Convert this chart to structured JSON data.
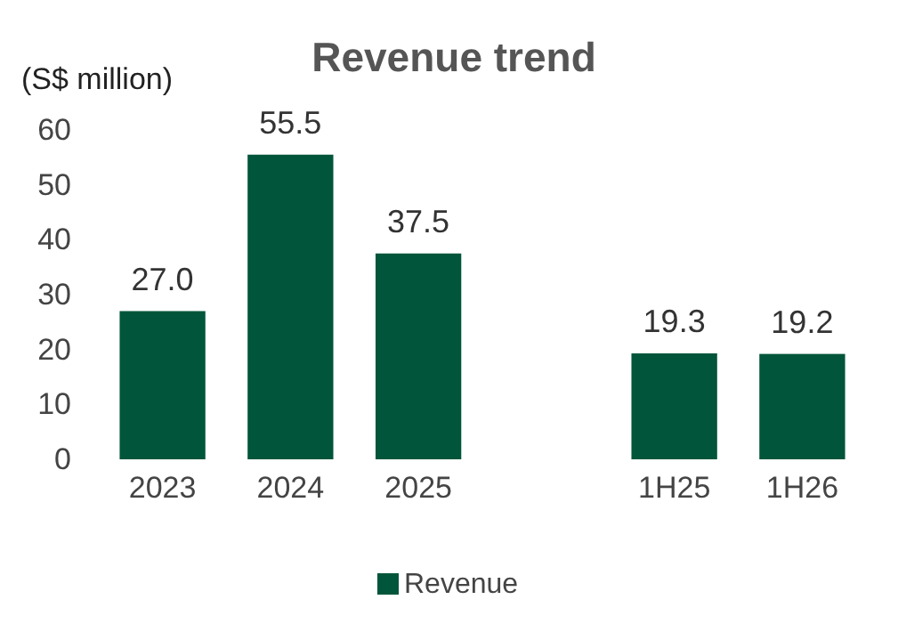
{
  "chart_data": {
    "type": "bar",
    "title": "Revenue trend",
    "ylabel": "(S$ million)",
    "categories": [
      "2023",
      "2024",
      "2025",
      null,
      "1H25",
      "1H26"
    ],
    "series": [
      {
        "name": "Revenue",
        "color": "#00553a",
        "values": [
          27.0,
          55.5,
          37.5,
          null,
          19.3,
          19.2
        ],
        "value_labels": [
          "27.0",
          "55.5",
          "37.5",
          null,
          "19.3",
          "19.2"
        ]
      }
    ],
    "ylim": [
      0,
      60
    ],
    "yticks": [
      0,
      10,
      20,
      30,
      40,
      50,
      60
    ],
    "legend": "bottom",
    "grid": false
  }
}
